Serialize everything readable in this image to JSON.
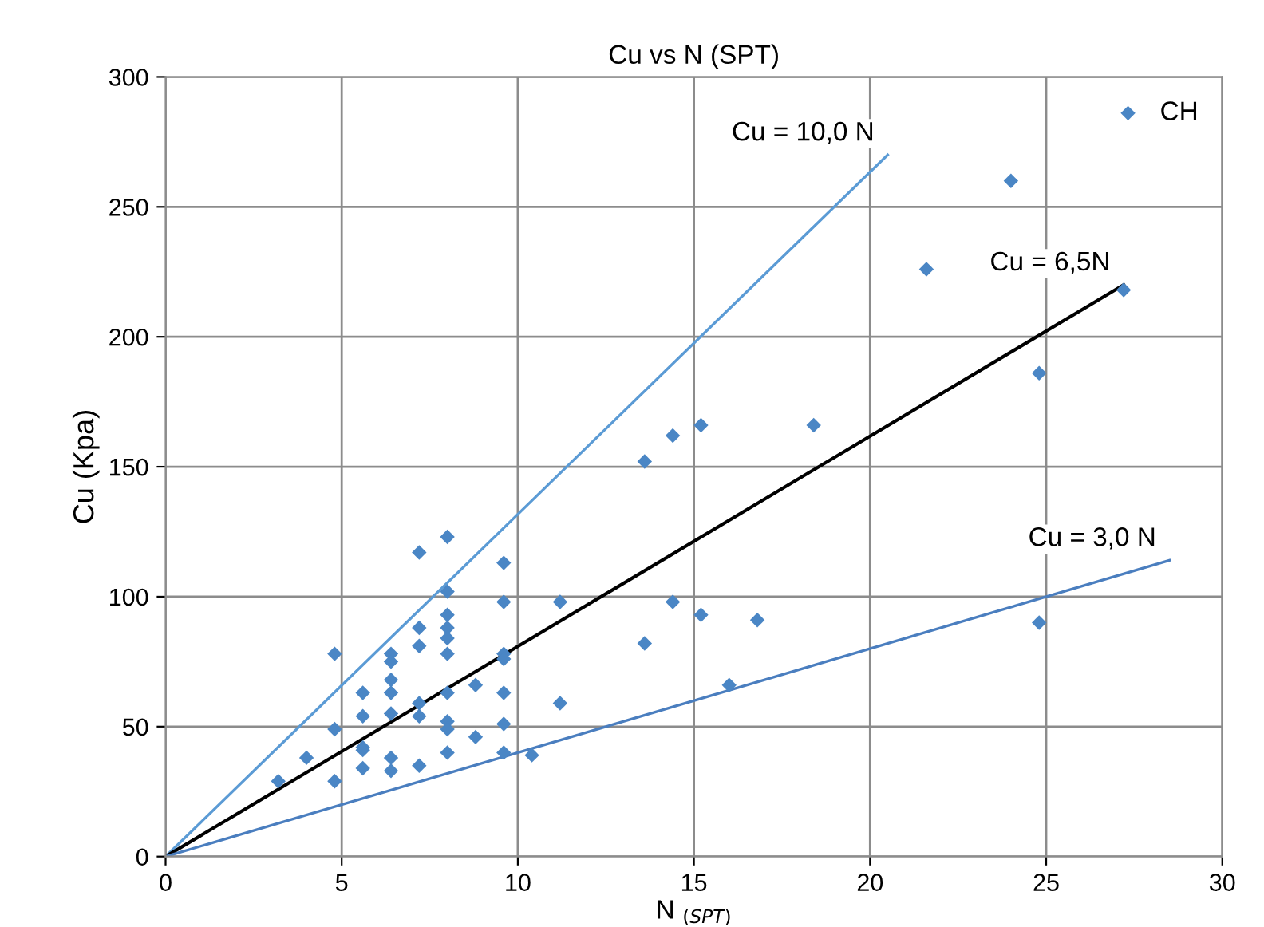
{
  "chart_data": {
    "type": "scatter",
    "title": "Cu vs N (SPT)",
    "xlabel": "N $_{(SPT)}$",
    "ylabel": "Cu (Kpa)",
    "xlim": [
      0,
      30
    ],
    "ylim": [
      0,
      300
    ],
    "xticks": [
      0,
      5,
      10,
      15,
      20,
      25,
      30
    ],
    "yticks": [
      0,
      50,
      100,
      150,
      200,
      250,
      300
    ],
    "grid": true,
    "legend": "top right",
    "series": [
      {
        "name": "CH",
        "marker": "diamond",
        "color": "#4a86c5",
        "x": [
          3.2,
          4.0,
          4.8,
          4.8,
          4.8,
          5.6,
          5.6,
          5.6,
          5.6,
          5.6,
          6.4,
          6.4,
          6.4,
          6.4,
          6.4,
          6.4,
          6.4,
          7.2,
          7.2,
          7.2,
          7.2,
          7.2,
          7.2,
          8.0,
          8.0,
          8.0,
          8.0,
          8.0,
          8.0,
          8.0,
          8.0,
          8.0,
          8.0,
          8.8,
          8.8,
          9.6,
          9.6,
          9.6,
          9.6,
          9.6,
          9.6,
          9.6,
          10.4,
          11.2,
          11.2,
          13.6,
          14.4,
          15.2,
          18.4,
          21.6,
          24.8,
          27.2,
          13.6,
          14.4,
          15.2,
          16.8,
          16.0,
          24.8,
          24.0
        ],
        "values": [
          29,
          38,
          78,
          49,
          29,
          63,
          54,
          42,
          41,
          34,
          78,
          75,
          68,
          63,
          55,
          38,
          33,
          117,
          88,
          81,
          59,
          54,
          35,
          123,
          102,
          93,
          88,
          84,
          78,
          63,
          52,
          49,
          40,
          66,
          46,
          113,
          98,
          78,
          76,
          63,
          51,
          40,
          39,
          98,
          59,
          152,
          162,
          166,
          166,
          226,
          186,
          218,
          82,
          98,
          93,
          91,
          66,
          90,
          260
        ]
      },
      {
        "type": "line",
        "marker": "none",
        "line_style": "solid",
        "color": "#5b9bd5",
        "x": [
          0,
          20.5
        ],
        "values": [
          0,
          270
        ]
      },
      {
        "type": "line",
        "marker": "none",
        "line_style": "solid",
        "color": "#000000",
        "x": [
          0,
          27.2
        ],
        "values": [
          0,
          220
        ]
      },
      {
        "type": "line",
        "marker": "none",
        "line_style": "solid",
        "color": "#4a7ebf",
        "x": [
          0,
          28.5
        ],
        "values": [
          0,
          114
        ]
      }
    ],
    "annotations": [
      {
        "text": "Cu = 10,0 N",
        "x": 20.5,
        "y": 270
      },
      {
        "text": "Cu = 6,5N",
        "x": 27.2,
        "y": 220
      },
      {
        "text": "Cu = 3,0 N",
        "x": 28.5,
        "y": 114
      }
    ]
  }
}
